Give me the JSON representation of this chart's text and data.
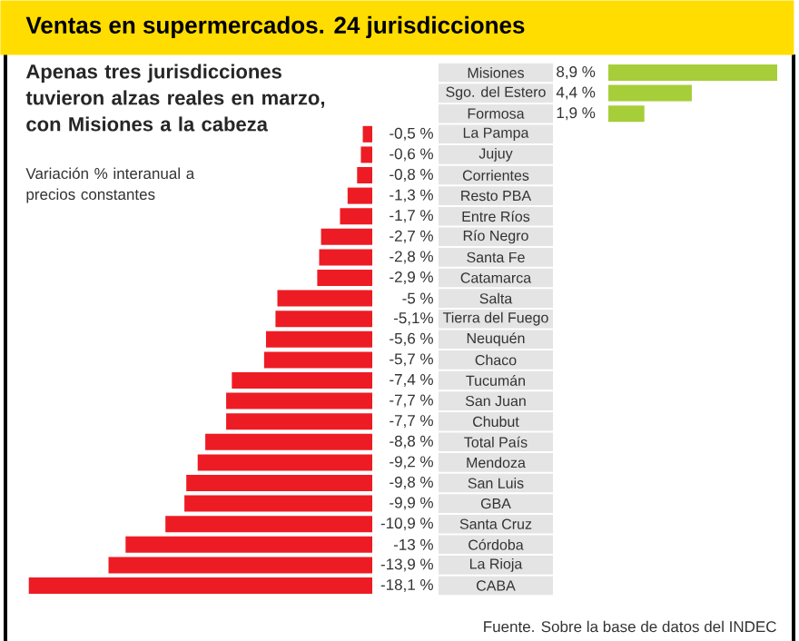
{
  "chart_data": [
    {
      "type": "bar",
      "orientation": "horizontal",
      "title": "Ventas en supermercados. 24 jurisdicciones",
      "categories": [
        "Misiones",
        "Sgo. del Estero",
        "Formosa"
      ],
      "values": [
        8.9,
        4.4,
        1.9
      ],
      "value_labels": [
        "8,9 %",
        "4,4 %",
        "1,9 %"
      ],
      "colors": [
        "#a6ce39",
        "#a6ce39",
        "#a6ce39"
      ]
    },
    {
      "type": "bar",
      "orientation": "horizontal",
      "subtitle": "Apenas tres jurisdicciones tuvieron alzas reales en marzo, con Misiones a la cabeza",
      "annotations": [
        "Variación % interanual a precios constantes",
        "Fuente. Sobre la base de datos del INDEC"
      ],
      "categories": [
        "La Pampa",
        "Jujuy",
        "Corrientes",
        "Resto PBA",
        "Entre Ríos",
        "Río Negro",
        "Santa Fe",
        "Catamarca",
        "Salta",
        "Tierra del Fuego",
        "Neuquén",
        "Chaco",
        "Tucumán",
        "San Juan",
        "Chubut",
        "Total País",
        "Mendoza",
        "San Luis",
        "GBA",
        "Santa Cruz",
        "Córdoba",
        "La Rioja",
        "CABA"
      ],
      "values": [
        -0.5,
        -0.6,
        -0.8,
        -1.3,
        -1.7,
        -2.7,
        -2.8,
        -2.9,
        -5,
        -5.1,
        -5.6,
        -5.7,
        -7.4,
        -7.7,
        -7.7,
        -8.8,
        -9.2,
        -9.8,
        -9.9,
        -10.9,
        -13,
        -13.9,
        -18.1
      ],
      "value_labels": [
        "-0,5 %",
        "-0,6 %",
        "-0,8 %",
        "-1,3 %",
        "-1,7 %",
        "-2,7 %",
        "-2,8 %",
        "-2,9 %",
        "-5 %",
        "-5,1%",
        "-5,6 %",
        "-5,7 %",
        "-7,4 %",
        "-7,7 %",
        "-7,7 %",
        "-8,8 %",
        "-9,2 %",
        "-9,8 %",
        "-9,9 %",
        "-10,9 %",
        "-13 %",
        "-13,9 %",
        "-18,1 %"
      ],
      "colors": [
        "#ed1c24",
        "#ed1c24",
        "#ed1c24",
        "#ed1c24",
        "#ed1c24",
        "#ed1c24",
        "#ed1c24",
        "#ed1c24",
        "#ed1c24",
        "#ed1c24",
        "#ed1c24",
        "#ed1c24",
        "#ed1c24",
        "#ed1c24",
        "#ed1c24",
        "#ed1c24",
        "#ed1c24",
        "#ed1c24",
        "#ed1c24",
        "#ed1c24",
        "#ed1c24",
        "#ed1c24",
        "#ed1c24"
      ]
    }
  ]
}
